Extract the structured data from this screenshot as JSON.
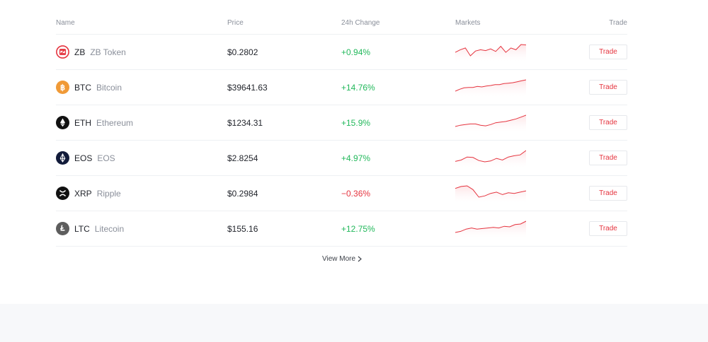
{
  "table": {
    "headers": {
      "name": "Name",
      "price": "Price",
      "change": "24h Change",
      "markets": "Markets",
      "trade": "Trade"
    },
    "rows": [
      {
        "symbol": "ZB",
        "name": "ZB Token",
        "price": "$0.2802",
        "change": "+0.94%",
        "direction": "up",
        "icon": "zb-token-icon",
        "icon_color": "#e5343f",
        "spark": [
          60,
          66,
          70,
          52,
          63,
          66,
          64,
          68,
          62,
          74,
          60,
          70,
          66,
          78,
          77
        ]
      },
      {
        "symbol": "BTC",
        "name": "Bitcoin",
        "price": "$39641.63",
        "change": "+14.76%",
        "direction": "up",
        "icon": "bitcoin-icon",
        "icon_color": "#f09a37",
        "spark": [
          40,
          44,
          47,
          48,
          48,
          50,
          49,
          51,
          52,
          54,
          54,
          56,
          57,
          58,
          60,
          62,
          64
        ]
      },
      {
        "symbol": "ETH",
        "name": "Ethereum",
        "price": "$1234.31",
        "change": "+15.9%",
        "direction": "up",
        "icon": "ethereum-icon",
        "icon_color": "#111111",
        "spark": [
          40,
          42,
          43,
          44,
          44,
          42,
          41,
          43,
          46,
          47,
          48,
          50,
          52,
          55,
          58
        ]
      },
      {
        "symbol": "EOS",
        "name": "EOS",
        "price": "$2.8254",
        "change": "+4.97%",
        "direction": "up",
        "icon": "eos-icon",
        "icon_color": "#121b3a",
        "spark": [
          45,
          48,
          55,
          54,
          47,
          44,
          46,
          52,
          48,
          55,
          58,
          60,
          70
        ]
      },
      {
        "symbol": "XRP",
        "name": "Ripple",
        "price": "$0.2984",
        "change": "−0.36%",
        "direction": "down",
        "icon": "ripple-icon",
        "icon_color": "#111111",
        "spark": [
          62,
          65,
          66,
          60,
          48,
          50,
          54,
          56,
          52,
          55,
          54,
          56,
          58
        ]
      },
      {
        "symbol": "LTC",
        "name": "Litecoin",
        "price": "$155.16",
        "change": "+12.75%",
        "direction": "up",
        "icon": "litecoin-icon",
        "icon_color": "#5d5d5d",
        "spark": [
          40,
          42,
          46,
          48,
          46,
          47,
          48,
          49,
          48,
          51,
          50,
          54,
          55,
          60
        ]
      }
    ],
    "trade_label": "Trade"
  },
  "view_more": {
    "label": "View More"
  },
  "colors": {
    "up": "#22b85b",
    "down": "#e5343f",
    "spark_line": "#e5343f",
    "spark_fill": "#fde3e5"
  }
}
